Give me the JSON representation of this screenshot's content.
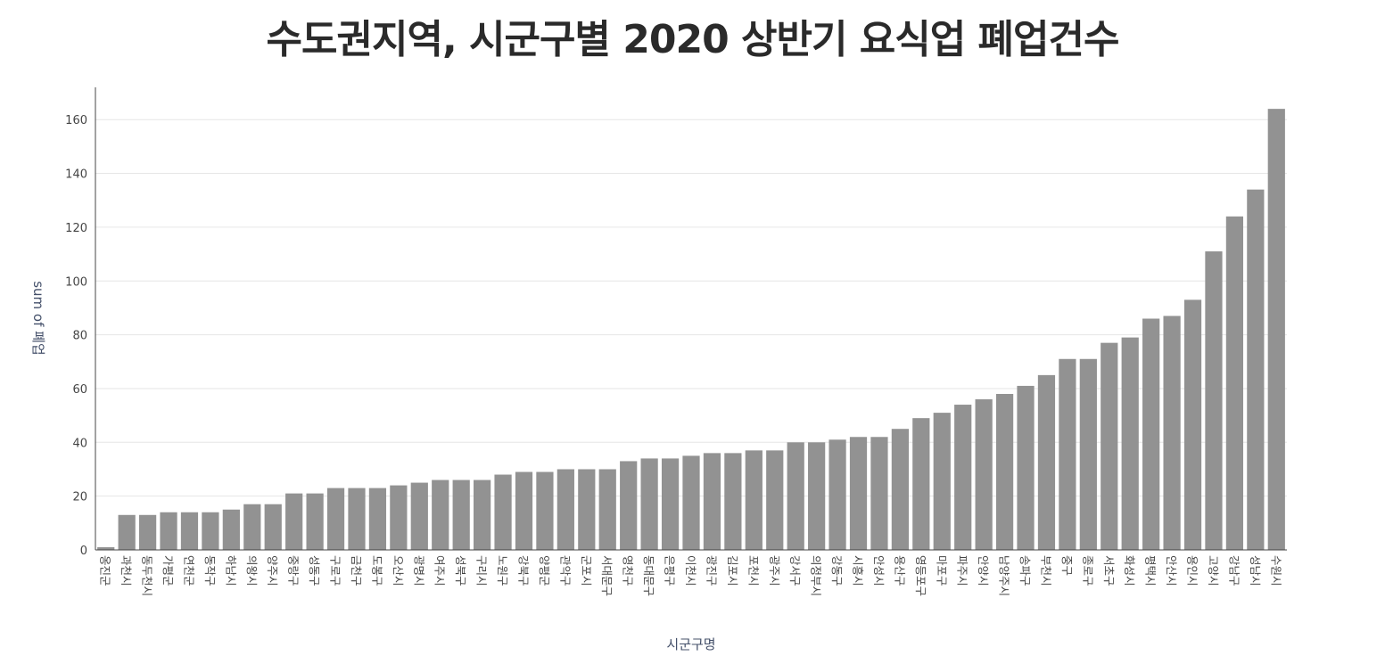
{
  "chart_data": {
    "type": "bar",
    "title": "수도권지역, 시군구별 2020 상반기 요식업 폐업건수",
    "xlabel": "시군구명",
    "ylabel": "sum of 폐업",
    "ylim": [
      0,
      172
    ],
    "yticks": [
      0,
      20,
      40,
      60,
      80,
      100,
      120,
      140,
      160
    ],
    "grid": true,
    "bar_color": "#929292",
    "categories": [
      "옹진군",
      "과천시",
      "동두천시",
      "가평군",
      "연천군",
      "동작구",
      "하남시",
      "의왕시",
      "양주시",
      "중랑구",
      "성동구",
      "구로구",
      "금천구",
      "도봉구",
      "오산시",
      "광명시",
      "여주시",
      "성북구",
      "구리시",
      "노원구",
      "강북구",
      "양평군",
      "관악구",
      "군포시",
      "서대문구",
      "영천구",
      "동대문구",
      "은평구",
      "이천시",
      "광진구",
      "김포시",
      "포천시",
      "광주시",
      "강서구",
      "의정부시",
      "강동구",
      "시흥시",
      "안성시",
      "용산구",
      "영등포구",
      "마포구",
      "파주시",
      "안양시",
      "남양주시",
      "송파구",
      "부천시",
      "중구",
      "종로구",
      "서초구",
      "화성시",
      "평택시",
      "안산시",
      "용인시",
      "고양시",
      "강남구",
      "성남시",
      "수원시"
    ],
    "values": [
      1,
      13,
      13,
      14,
      14,
      14,
      15,
      17,
      17,
      21,
      21,
      23,
      23,
      23,
      24,
      25,
      26,
      26,
      26,
      28,
      29,
      29,
      30,
      30,
      30,
      33,
      34,
      34,
      35,
      36,
      36,
      37,
      37,
      40,
      40,
      41,
      42,
      42,
      45,
      49,
      51,
      54,
      56,
      58,
      61,
      65,
      71,
      71,
      77,
      79,
      86,
      87,
      93,
      111,
      124,
      134,
      164
    ]
  }
}
